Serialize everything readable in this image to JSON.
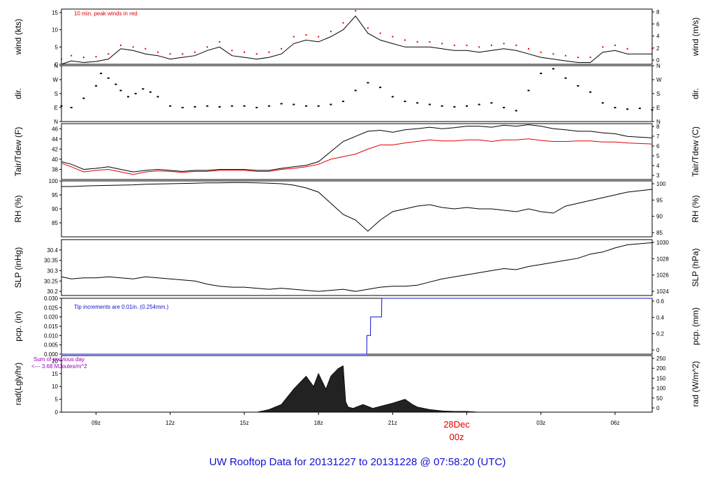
{
  "footer_title": "UW Rooftop Data for 20131227  to  20131228 @ 07:58:20  (UTC)",
  "date_label": "28Dec",
  "date_sublabel": "00z",
  "colors": {
    "black": "#000000",
    "red": "#e00000",
    "blue": "#1010d0",
    "purple": "#9900bb"
  },
  "chart_data": [
    {
      "type": "line",
      "ylabel": "wind (kts)",
      "ylabel_right": "wind (m/s)",
      "ylim": [
        0,
        16
      ],
      "yticks": [
        0,
        5,
        10,
        15
      ],
      "yticks_right": [
        "0",
        "2",
        "4",
        "6",
        "8"
      ],
      "annotation": "10 min. peak winds in red",
      "x": [
        7.6,
        8.0,
        8.5,
        9.0,
        9.5,
        10.0,
        10.5,
        11.0,
        11.5,
        12.0,
        12.5,
        13.0,
        13.5,
        14.0,
        14.5,
        15.0,
        15.5,
        16.0,
        16.5,
        17.0,
        17.5,
        18.0,
        18.5,
        19.0,
        19.5,
        20.0,
        20.5,
        21.0,
        21.5,
        22.0,
        22.5,
        23.0,
        23.5,
        24.0,
        24.5,
        25.0,
        25.5,
        26.0,
        26.5,
        27.0,
        27.5,
        28.0,
        28.5,
        29.0,
        29.5,
        30.0,
        30.5,
        31.5
      ],
      "series": [
        {
          "values": [
            0,
            1,
            0.5,
            0.8,
            1.5,
            4.5,
            4,
            3,
            2.5,
            1.5,
            2,
            2.5,
            4,
            5,
            2.5,
            2,
            1.5,
            2,
            3,
            6,
            7,
            6.5,
            8,
            10,
            14,
            9,
            7,
            6,
            5,
            5,
            5,
            4.5,
            4,
            4,
            3.5,
            4,
            4.5,
            4,
            3,
            2,
            1.5,
            1,
            0.5,
            0.5,
            3.5,
            4,
            3,
            3
          ]
        },
        {
          "values": [
            1.5,
            2.5,
            2,
            2.2,
            3,
            5.5,
            5,
            4.5,
            3.5,
            3,
            3,
            3.5,
            5,
            6.5,
            4,
            3.5,
            3,
            3.5,
            4.5,
            8,
            8.5,
            8,
            9.5,
            12,
            15.5,
            10.5,
            9,
            8,
            7,
            6.5,
            6.5,
            6,
            5.5,
            5.5,
            5,
            5.5,
            6,
            5.5,
            4.5,
            3.5,
            3,
            2.5,
            2,
            2,
            5,
            5.5,
            4.5,
            4.5
          ]
        }
      ]
    },
    {
      "type": "scatter",
      "ylabel": "dir.",
      "ylabel_right": "dir.",
      "ylim": [
        0,
        360
      ],
      "yticks_labels": [
        "N",
        "E",
        "S",
        "W",
        "N"
      ],
      "x": [
        7.6,
        8.0,
        8.5,
        9.0,
        9.2,
        9.5,
        9.8,
        10.0,
        10.3,
        10.6,
        10.9,
        11.2,
        11.5,
        12.0,
        12.5,
        13.0,
        13.5,
        14.0,
        14.5,
        15.0,
        15.5,
        16.0,
        16.5,
        17.0,
        17.5,
        18.0,
        18.5,
        19.0,
        19.5,
        20.0,
        20.5,
        21.0,
        21.5,
        22.0,
        22.5,
        23.0,
        23.5,
        24.0,
        24.5,
        25.0,
        25.5,
        26.0,
        26.5,
        27.0,
        27.5,
        28.0,
        28.5,
        29.0,
        29.5,
        30.0,
        30.5,
        31.0,
        31.5
      ],
      "values": [
        100,
        90,
        150,
        230,
        310,
        280,
        240,
        200,
        160,
        180,
        210,
        190,
        160,
        100,
        90,
        95,
        100,
        95,
        100,
        100,
        90,
        100,
        115,
        110,
        100,
        100,
        110,
        130,
        200,
        250,
        220,
        160,
        130,
        120,
        110,
        100,
        95,
        100,
        110,
        120,
        90,
        70,
        200,
        310,
        340,
        280,
        230,
        190,
        120,
        90,
        80,
        85,
        75
      ]
    },
    {
      "type": "line",
      "ylabel": "Tair/Tdew (F)",
      "ylabel_right": "Tair/Tdew (C)",
      "ylim": [
        36,
        47
      ],
      "yticks": [
        38,
        40,
        42,
        44,
        46
      ],
      "yticks_right": [
        "3",
        "4",
        "5",
        "6",
        "7",
        "8"
      ],
      "x": [
        7.6,
        8.0,
        8.5,
        9.0,
        9.5,
        10.0,
        10.5,
        11.0,
        11.5,
        12.0,
        12.5,
        13.0,
        13.5,
        14.0,
        14.5,
        15.0,
        15.5,
        16.0,
        16.5,
        17.0,
        17.5,
        18.0,
        18.5,
        19.0,
        19.5,
        20.0,
        20.5,
        21.0,
        21.5,
        22.0,
        22.5,
        23.0,
        23.5,
        24.0,
        24.5,
        25.0,
        25.5,
        26.0,
        26.5,
        27.0,
        27.5,
        28.0,
        28.5,
        29.0,
        29.5,
        30.0,
        30.5,
        31.5
      ],
      "series": [
        {
          "values": [
            39.5,
            39,
            38,
            38.2,
            38.5,
            38.0,
            37.5,
            37.8,
            38,
            37.8,
            37.6,
            37.8,
            37.8,
            38,
            38,
            38,
            37.8,
            37.8,
            38.2,
            38.5,
            38.8,
            39.5,
            41.5,
            43.5,
            44.5,
            45.5,
            45.7,
            45.3,
            45.8,
            46.0,
            46.3,
            46.0,
            46.2,
            46.5,
            46.5,
            46.3,
            46.7,
            46.5,
            46.8,
            46.5,
            46.0,
            45.8,
            45.5,
            45.5,
            45.2,
            45.0,
            44.5,
            44.2
          ]
        },
        {
          "values": [
            39.2,
            38.5,
            37.5,
            37.8,
            38,
            37.5,
            37,
            37.5,
            37.7,
            37.6,
            37.4,
            37.6,
            37.6,
            37.8,
            37.8,
            37.8,
            37.6,
            37.6,
            38,
            38.2,
            38.5,
            39,
            40,
            40.5,
            41,
            42,
            42.8,
            42.8,
            43.2,
            43.5,
            43.8,
            43.6,
            43.6,
            43.8,
            43.8,
            43.5,
            43.8,
            43.8,
            44,
            43.7,
            43.5,
            43.5,
            43.6,
            43.6,
            43.4,
            43.4,
            43.2,
            43.0
          ]
        }
      ]
    },
    {
      "type": "line",
      "ylabel": "RH (%)",
      "ylabel_right": "RH (%)",
      "ylim": [
        80,
        100
      ],
      "yticks": [
        85,
        90,
        95,
        100
      ],
      "yticks_right": [
        "85",
        "90",
        "95",
        "100"
      ],
      "x": [
        7.6,
        8.0,
        8.5,
        9.0,
        9.5,
        10.0,
        10.5,
        11.0,
        11.5,
        12.0,
        12.5,
        13.0,
        13.5,
        14.0,
        14.5,
        15.0,
        15.5,
        16.0,
        16.5,
        17.0,
        17.5,
        18.0,
        18.5,
        19.0,
        19.5,
        20.0,
        20.5,
        21.0,
        21.5,
        22.0,
        22.5,
        23.0,
        23.5,
        24.0,
        24.5,
        25.0,
        25.5,
        26.0,
        26.5,
        27.0,
        27.5,
        28.0,
        28.5,
        29.0,
        29.5,
        30.0,
        30.5,
        31.5
      ],
      "series": [
        {
          "values": [
            98,
            98,
            98.2,
            98.3,
            98.4,
            98.5,
            98.6,
            98.8,
            98.9,
            99,
            99.1,
            99.2,
            99.3,
            99.3,
            99.4,
            99.4,
            99.3,
            99.2,
            99.0,
            98.5,
            97.5,
            96,
            92,
            88,
            86,
            82,
            86,
            89,
            90,
            91,
            91.5,
            90.5,
            90,
            90.5,
            90,
            90,
            89.5,
            89,
            90,
            89,
            88.5,
            91,
            92,
            93,
            94,
            95,
            96,
            97
          ]
        }
      ]
    },
    {
      "type": "line",
      "ylabel": "SLP (inHg)",
      "ylabel_right": "SLP (hPa)",
      "ylim": [
        30.18,
        30.45
      ],
      "yticks": [
        30.2,
        30.25,
        30.3,
        30.35,
        30.4
      ],
      "yticks_right": [
        "1024",
        "1026",
        "1028",
        "1030"
      ],
      "x": [
        7.6,
        8.0,
        8.5,
        9.0,
        9.5,
        10.0,
        10.5,
        11.0,
        11.5,
        12.0,
        12.5,
        13.0,
        13.5,
        14.0,
        14.5,
        15.0,
        15.5,
        16.0,
        16.5,
        17.0,
        17.5,
        18.0,
        18.5,
        19.0,
        19.5,
        20.0,
        20.5,
        21.0,
        21.5,
        22.0,
        22.5,
        23.0,
        23.5,
        24.0,
        24.5,
        25.0,
        25.5,
        26.0,
        26.5,
        27.0,
        27.5,
        28.0,
        28.5,
        29.0,
        29.5,
        30.0,
        30.5,
        31.5
      ],
      "series": [
        {
          "values": [
            30.27,
            30.26,
            30.265,
            30.265,
            30.27,
            30.265,
            30.26,
            30.27,
            30.265,
            30.26,
            30.255,
            30.25,
            30.235,
            30.225,
            30.22,
            30.22,
            30.215,
            30.21,
            30.215,
            30.21,
            30.205,
            30.2,
            30.205,
            30.21,
            30.2,
            30.21,
            30.22,
            30.225,
            30.225,
            30.23,
            30.245,
            30.26,
            30.27,
            30.28,
            30.29,
            30.3,
            30.31,
            30.305,
            30.32,
            30.33,
            30.34,
            30.35,
            30.36,
            30.38,
            30.39,
            30.41,
            30.425,
            30.435
          ]
        }
      ]
    },
    {
      "type": "line",
      "ylabel": "pcp. (in)",
      "ylabel_right": "pcp. (mm)",
      "ylim": [
        0,
        0.03
      ],
      "yticks": [
        "0.000",
        "0.005",
        "0.010",
        "0.015",
        "0.020",
        "0.025",
        "0.030"
      ],
      "yticks_right": [
        "0",
        "0.2",
        "0.4",
        "0.6"
      ],
      "annotation": "Tip increments are 0.01in. (0.254mm.)",
      "x": [
        7.6,
        19.95,
        19.96,
        20.1,
        20.11,
        20.55,
        20.56,
        31.5
      ],
      "series": [
        {
          "values": [
            0,
            0,
            0.01,
            0.01,
            0.02,
            0.02,
            0.03,
            0.03
          ]
        }
      ]
    },
    {
      "type": "area",
      "ylabel": "rad(Lgly/hr)",
      "ylabel_right": "rad (W/m^2)",
      "ylim": [
        0,
        22
      ],
      "yticks": [
        0,
        5,
        10,
        15,
        20
      ],
      "yticks_right": [
        "0",
        "50",
        "100",
        "150",
        "200",
        "250"
      ],
      "annotation_lines": [
        "Sum of previous day",
        "<--- 3.68 MJoules/m^2"
      ],
      "x": [
        7.6,
        15.5,
        16.0,
        16.5,
        17.0,
        17.5,
        17.8,
        18.0,
        18.3,
        18.5,
        18.8,
        19.0,
        19.1,
        19.2,
        19.4,
        19.8,
        20.2,
        20.6,
        21.0,
        21.5,
        21.8,
        22.0,
        22.5,
        23.0,
        23.5,
        24.0,
        24.5,
        31.5
      ],
      "series": [
        {
          "values": [
            0,
            0,
            1,
            3,
            9,
            14,
            10,
            15,
            9,
            14,
            17,
            18,
            4,
            2,
            1.5,
            3,
            1.5,
            2.5,
            3.5,
            5,
            3,
            2,
            1,
            0.5,
            0.3,
            0.3,
            0,
            0
          ]
        }
      ]
    }
  ],
  "x_axis": {
    "xlim": [
      7.6,
      31.5
    ],
    "tick_values": [
      9,
      12,
      15,
      18,
      21,
      24,
      27,
      30
    ],
    "tick_labels": [
      "09z",
      "12z",
      "15z",
      "18z",
      "21z",
      "",
      "03z",
      "06z"
    ]
  }
}
